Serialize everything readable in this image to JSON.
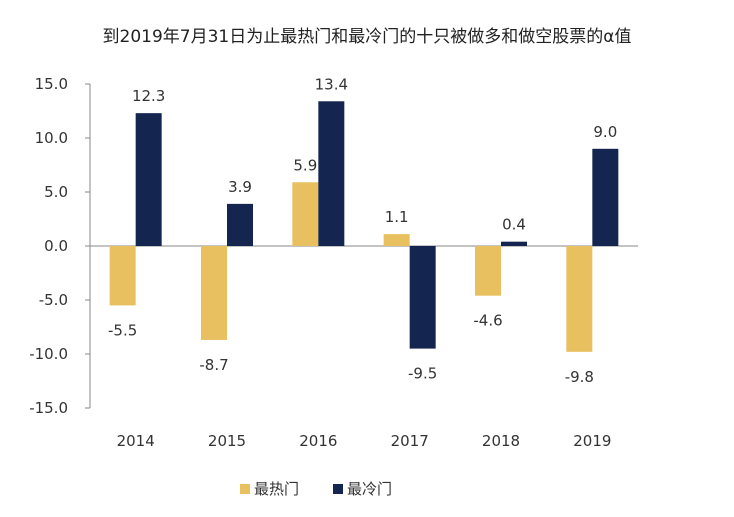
{
  "chart_data": {
    "type": "bar",
    "title": "到2019年7月31日为止最热门和最冷门的十只被做多和做空股票的α值",
    "categories": [
      "2014",
      "2015",
      "2016",
      "2017",
      "2018",
      "2019"
    ],
    "series": [
      {
        "name": "最热门",
        "color": "#E8C060",
        "values": [
          -5.5,
          -8.7,
          5.9,
          1.1,
          -4.6,
          -9.8
        ]
      },
      {
        "name": "最冷门",
        "color": "#14254F",
        "values": [
          12.3,
          3.9,
          13.4,
          -9.5,
          0.4,
          9.0
        ]
      }
    ],
    "yticks": [
      "15.0",
      "10.0",
      "5.0",
      "0.0",
      "-5.0",
      "-10.0",
      "-15.0"
    ],
    "ylim": [
      -15,
      15
    ],
    "legend_position": "bottom",
    "grid": false
  }
}
